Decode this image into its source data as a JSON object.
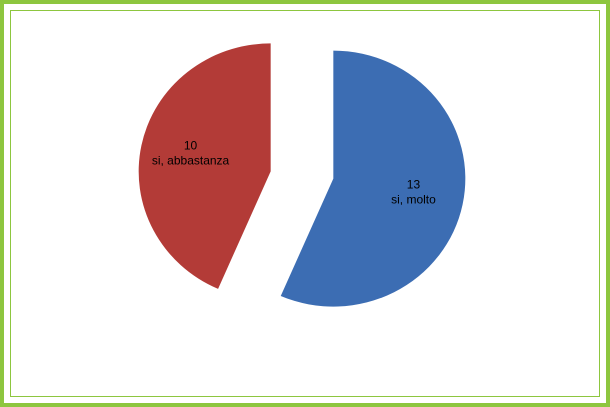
{
  "chart_data": {
    "type": "pie",
    "title": "",
    "slices": [
      {
        "label": "si, molto",
        "value": 13,
        "color": "#3c6db3"
      },
      {
        "label": "si, abbastanza",
        "value": 10,
        "color": "#b33b37"
      }
    ],
    "exploded": true,
    "legend": "none"
  },
  "colors": {
    "frame_border": "#8dc63f",
    "background": "#ffffff"
  }
}
